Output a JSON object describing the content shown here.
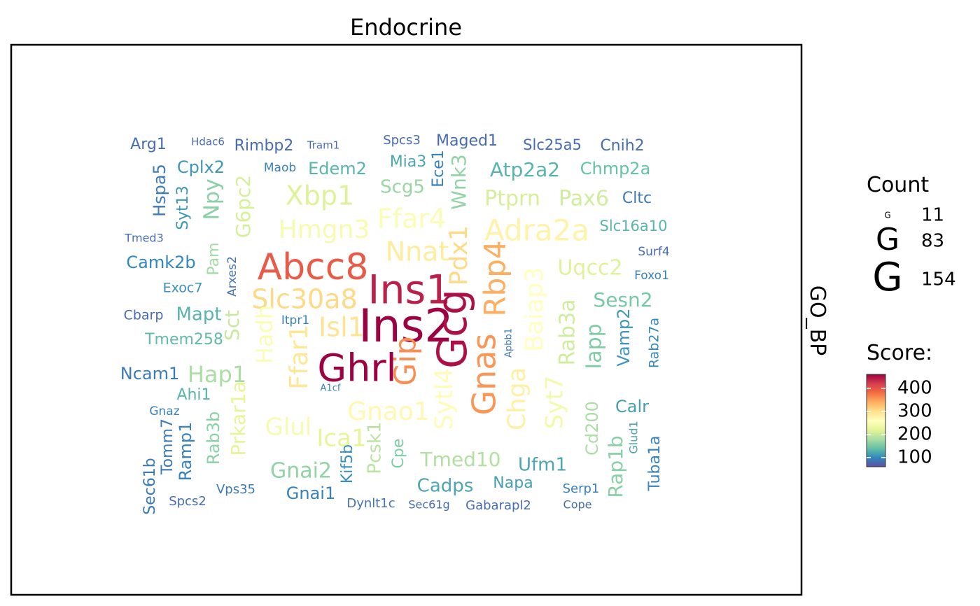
{
  "chart_data": {
    "type": "wordcloud",
    "title": "Endocrine",
    "strip_label": "GO_BP",
    "legend_count": {
      "title": "Count",
      "glyph": "G",
      "entries": [
        {
          "label": "11",
          "value": 11
        },
        {
          "label": "83",
          "value": 83
        },
        {
          "label": "154",
          "value": 154
        }
      ]
    },
    "legend_score": {
      "title": "Score:",
      "ticks": [
        100,
        200,
        300,
        400
      ],
      "range": [
        60,
        460
      ],
      "colors": [
        "#5E4FA2",
        "#3288BD",
        "#66C2A5",
        "#ABDDA4",
        "#E6F598",
        "#FFFFBF",
        "#FEE08B",
        "#FDAE61",
        "#F46D43",
        "#D53E4F",
        "#9E0142"
      ]
    },
    "words": [
      {
        "text": "Ins2",
        "count": 154,
        "score": 460
      },
      {
        "text": "Ins1",
        "count": 143,
        "score": 440
      },
      {
        "text": "Ghrl",
        "count": 135,
        "score": 460
      },
      {
        "text": "Abcc8",
        "count": 118,
        "score": 395
      },
      {
        "text": "Gcg",
        "count": 140,
        "score": 450
      },
      {
        "text": "Gnas",
        "count": 105,
        "score": 355
      },
      {
        "text": "Gip",
        "count": 98,
        "score": 360
      },
      {
        "text": "Rbp4",
        "count": 95,
        "score": 340
      },
      {
        "text": "Slc30a8",
        "count": 87,
        "score": 305
      },
      {
        "text": "Isl1",
        "count": 83,
        "score": 295
      },
      {
        "text": "Nnat",
        "count": 80,
        "score": 285
      },
      {
        "text": "Pdx1",
        "count": 78,
        "score": 305
      },
      {
        "text": "Adra2a",
        "count": 83,
        "score": 275
      },
      {
        "text": "Ffar4",
        "count": 80,
        "score": 250
      },
      {
        "text": "Hmgn3",
        "count": 72,
        "score": 245
      },
      {
        "text": "Xbp1",
        "count": 72,
        "score": 215
      },
      {
        "text": "Gnao1",
        "count": 75,
        "score": 270
      },
      {
        "text": "Ffar1",
        "count": 70,
        "score": 290
      },
      {
        "text": "Baiap3",
        "count": 72,
        "score": 260
      },
      {
        "text": "Chga",
        "count": 75,
        "score": 280
      },
      {
        "text": "Sytl4",
        "count": 68,
        "score": 265
      },
      {
        "text": "Syt7",
        "count": 66,
        "score": 240
      },
      {
        "text": "Hadh",
        "count": 62,
        "score": 250
      },
      {
        "text": "Glul",
        "count": 62,
        "score": 245
      },
      {
        "text": "Ica1",
        "count": 60,
        "score": 220
      },
      {
        "text": "Wnk3",
        "count": 55,
        "score": 165
      },
      {
        "text": "Ptprn",
        "count": 55,
        "score": 210
      },
      {
        "text": "Pax6",
        "count": 55,
        "score": 205
      },
      {
        "text": "Uqcc2",
        "count": 52,
        "score": 215
      },
      {
        "text": "Rab3a",
        "count": 52,
        "score": 205
      },
      {
        "text": "Iapp",
        "count": 52,
        "score": 155
      },
      {
        "text": "Sct",
        "count": 50,
        "score": 200
      },
      {
        "text": "G6pc2",
        "count": 48,
        "score": 210
      },
      {
        "text": "Npy",
        "count": 48,
        "score": 160
      },
      {
        "text": "Hap1",
        "count": 50,
        "score": 180
      },
      {
        "text": "Prkar1a",
        "count": 48,
        "score": 220
      },
      {
        "text": "Gnai2",
        "count": 48,
        "score": 165
      },
      {
        "text": "Tmed10",
        "count": 48,
        "score": 185
      },
      {
        "text": "Pcsk1",
        "count": 42,
        "score": 190
      },
      {
        "text": "Sesn2",
        "count": 44,
        "score": 150
      },
      {
        "text": "Edem2",
        "count": 40,
        "score": 130
      },
      {
        "text": "Atp2a2",
        "count": 44,
        "score": 130
      },
      {
        "text": "Scg5",
        "count": 40,
        "score": 170
      },
      {
        "text": "Mapt",
        "count": 40,
        "score": 130
      },
      {
        "text": "Ufm1",
        "count": 40,
        "score": 120
      },
      {
        "text": "Cadps",
        "count": 40,
        "score": 120
      },
      {
        "text": "Rap1b",
        "count": 42,
        "score": 160
      },
      {
        "text": "Cd200",
        "count": 38,
        "score": 180
      },
      {
        "text": "Calr",
        "count": 38,
        "score": 115
      },
      {
        "text": "Vamp2",
        "count": 38,
        "score": 110
      },
      {
        "text": "Cplx2",
        "count": 36,
        "score": 110
      },
      {
        "text": "Camk2b",
        "count": 36,
        "score": 100
      },
      {
        "text": "Ncam1",
        "count": 36,
        "score": 90
      },
      {
        "text": "Hspa5",
        "count": 34,
        "score": 90
      },
      {
        "text": "Ramp1",
        "count": 34,
        "score": 95
      },
      {
        "text": "Rab3b",
        "count": 34,
        "score": 160
      },
      {
        "text": "Chmp2a",
        "count": 33,
        "score": 140
      },
      {
        "text": "Gnai1",
        "count": 32,
        "score": 95
      },
      {
        "text": "Rimbp2",
        "count": 32,
        "score": 80
      },
      {
        "text": "Cnih2",
        "count": 32,
        "score": 80
      },
      {
        "text": "Tuba1a",
        "count": 32,
        "score": 95
      },
      {
        "text": "Pam",
        "count": 30,
        "score": 175
      },
      {
        "text": "Kif5b",
        "count": 30,
        "score": 105
      },
      {
        "text": "Cpe",
        "count": 30,
        "score": 155
      },
      {
        "text": "Syt13",
        "count": 30,
        "score": 110
      },
      {
        "text": "Tomm7",
        "count": 30,
        "score": 90
      },
      {
        "text": "Ece1",
        "count": 30,
        "score": 95
      },
      {
        "text": "Napa",
        "count": 30,
        "score": 115
      },
      {
        "text": "Ahi1",
        "count": 30,
        "score": 130
      },
      {
        "text": "Tmem258",
        "count": 30,
        "score": 135
      },
      {
        "text": "Mia3",
        "count": 28,
        "score": 120
      },
      {
        "text": "Maged1",
        "count": 28,
        "score": 80
      },
      {
        "text": "Arg1",
        "count": 28,
        "score": 80
      },
      {
        "text": "Cltc",
        "count": 28,
        "score": 90
      },
      {
        "text": "Sec61b",
        "count": 28,
        "score": 90
      },
      {
        "text": "Slc25a5",
        "count": 28,
        "score": 80
      },
      {
        "text": "Slc16a10",
        "count": 28,
        "score": 130
      },
      {
        "text": "Exoc7",
        "count": 26,
        "score": 105
      },
      {
        "text": "Rab27a",
        "count": 26,
        "score": 100
      },
      {
        "text": "Cbarp",
        "count": 26,
        "score": 80
      },
      {
        "text": "Arxes2",
        "count": 24,
        "score": 85
      },
      {
        "text": "Dynlt1c",
        "count": 25,
        "score": 85
      },
      {
        "text": "Gabarapl2",
        "count": 25,
        "score": 80
      },
      {
        "text": "Vps35",
        "count": 25,
        "score": 90
      },
      {
        "text": "Spcs2",
        "count": 24,
        "score": 80
      },
      {
        "text": "Serp1",
        "count": 24,
        "score": 95
      },
      {
        "text": "Spcs3",
        "count": 24,
        "score": 80
      },
      {
        "text": "Gnaz",
        "count": 24,
        "score": 95
      },
      {
        "text": "Itpr1",
        "count": 24,
        "score": 95
      },
      {
        "text": "Glud1",
        "count": 22,
        "score": 120
      },
      {
        "text": "Surf4",
        "count": 22,
        "score": 80
      },
      {
        "text": "Foxo1",
        "count": 22,
        "score": 95
      },
      {
        "text": "Maob",
        "count": 21,
        "score": 95
      },
      {
        "text": "Tmed3",
        "count": 21,
        "score": 80
      },
      {
        "text": "Sec61g",
        "count": 21,
        "score": 80
      },
      {
        "text": "Cope",
        "count": 20,
        "score": 80
      },
      {
        "text": "Hdac6",
        "count": 18,
        "score": 80
      },
      {
        "text": "Tram1",
        "count": 18,
        "score": 80
      },
      {
        "text": "Apbb1",
        "count": 15,
        "score": 90
      },
      {
        "text": "A1cf",
        "count": 15,
        "score": 95
      }
    ]
  }
}
